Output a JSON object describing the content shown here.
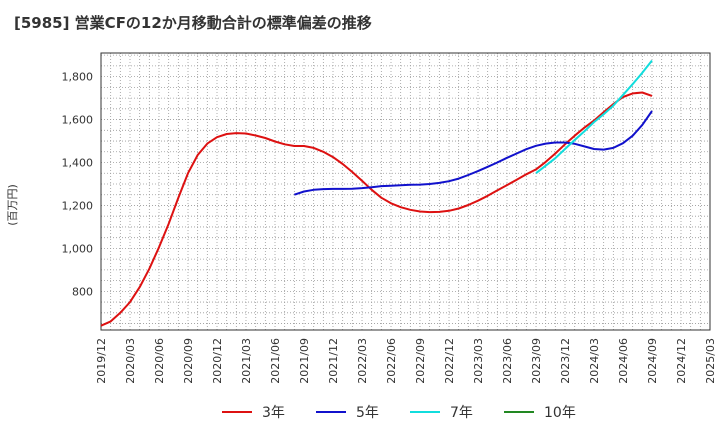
{
  "title": "[5985]  営業CFの12か月移動合計の標準偏差の推移",
  "colors": {
    "grid": "#999999",
    "axis": "#333333",
    "background": "#ffffff"
  },
  "chart_data": {
    "type": "line",
    "title": "[5985]  営業CFの12か月移動合計の標準偏差の推移",
    "xlabel": "",
    "ylabel": "(百万円)",
    "x_tick_labels": [
      "2019/12",
      "2020/03",
      "2020/06",
      "2020/09",
      "2020/12",
      "2021/03",
      "2021/06",
      "2021/09",
      "2021/12",
      "2022/03",
      "2022/06",
      "2022/09",
      "2022/12",
      "2023/03",
      "2023/06",
      "2023/09",
      "2023/12",
      "2024/03",
      "2024/06",
      "2024/09",
      "2024/12",
      "2025/03"
    ],
    "y_ticks": [
      800,
      1000,
      1200,
      1400,
      1600,
      1800
    ],
    "y_tick_labels": [
      "800",
      "1,000",
      "1,200",
      "1,400",
      "1,600",
      "1,800"
    ],
    "ylim": [
      620,
      1910
    ],
    "xlim": [
      "2019/12",
      "2025/03"
    ],
    "grid": true,
    "legend_position": "bottom",
    "series": [
      {
        "name": "3年",
        "color": "#dd1111",
        "points": [
          [
            "2019/12",
            640
          ],
          [
            "2020/01",
            660
          ],
          [
            "2020/02",
            700
          ],
          [
            "2020/03",
            750
          ],
          [
            "2020/04",
            820
          ],
          [
            "2020/05",
            905
          ],
          [
            "2020/06",
            1005
          ],
          [
            "2020/07",
            1115
          ],
          [
            "2020/08",
            1235
          ],
          [
            "2020/09",
            1350
          ],
          [
            "2020/10",
            1435
          ],
          [
            "2020/11",
            1488
          ],
          [
            "2020/12",
            1518
          ],
          [
            "2021/01",
            1533
          ],
          [
            "2021/02",
            1537
          ],
          [
            "2021/03",
            1535
          ],
          [
            "2021/04",
            1526
          ],
          [
            "2021/05",
            1514
          ],
          [
            "2021/06",
            1498
          ],
          [
            "2021/07",
            1485
          ],
          [
            "2021/08",
            1477
          ],
          [
            "2021/09",
            1477
          ],
          [
            "2021/10",
            1468
          ],
          [
            "2021/11",
            1450
          ],
          [
            "2021/12",
            1425
          ],
          [
            "2022/01",
            1393
          ],
          [
            "2022/02",
            1356
          ],
          [
            "2022/03",
            1315
          ],
          [
            "2022/04",
            1273
          ],
          [
            "2022/05",
            1236
          ],
          [
            "2022/06",
            1210
          ],
          [
            "2022/07",
            1192
          ],
          [
            "2022/08",
            1180
          ],
          [
            "2022/09",
            1172
          ],
          [
            "2022/10",
            1169
          ],
          [
            "2022/11",
            1170
          ],
          [
            "2022/12",
            1175
          ],
          [
            "2023/01",
            1186
          ],
          [
            "2023/02",
            1202
          ],
          [
            "2023/03",
            1222
          ],
          [
            "2023/04",
            1245
          ],
          [
            "2023/05",
            1270
          ],
          [
            "2023/06",
            1295
          ],
          [
            "2023/07",
            1320
          ],
          [
            "2023/08",
            1345
          ],
          [
            "2023/09",
            1368
          ],
          [
            "2023/10",
            1403
          ],
          [
            "2023/11",
            1442
          ],
          [
            "2023/12",
            1485
          ],
          [
            "2024/01",
            1525
          ],
          [
            "2024/02",
            1562
          ],
          [
            "2024/03",
            1595
          ],
          [
            "2024/04",
            1635
          ],
          [
            "2024/05",
            1672
          ],
          [
            "2024/06",
            1705
          ],
          [
            "2024/07",
            1722
          ],
          [
            "2024/08",
            1726
          ],
          [
            "2024/09",
            1710
          ]
        ]
      },
      {
        "name": "5年",
        "color": "#1111cc",
        "points": [
          [
            "2021/08",
            1250
          ],
          [
            "2021/09",
            1265
          ],
          [
            "2021/10",
            1273
          ],
          [
            "2021/11",
            1276
          ],
          [
            "2021/12",
            1277
          ],
          [
            "2022/01",
            1277
          ],
          [
            "2022/02",
            1278
          ],
          [
            "2022/03",
            1281
          ],
          [
            "2022/04",
            1285
          ],
          [
            "2022/05",
            1290
          ],
          [
            "2022/06",
            1292
          ],
          [
            "2022/07",
            1294
          ],
          [
            "2022/08",
            1296
          ],
          [
            "2022/09",
            1297
          ],
          [
            "2022/10",
            1300
          ],
          [
            "2022/11",
            1305
          ],
          [
            "2022/12",
            1313
          ],
          [
            "2023/01",
            1325
          ],
          [
            "2023/02",
            1342
          ],
          [
            "2023/03",
            1360
          ],
          [
            "2023/04",
            1380
          ],
          [
            "2023/05",
            1400
          ],
          [
            "2023/06",
            1422
          ],
          [
            "2023/07",
            1442
          ],
          [
            "2023/08",
            1462
          ],
          [
            "2023/09",
            1478
          ],
          [
            "2023/10",
            1488
          ],
          [
            "2023/11",
            1493
          ],
          [
            "2023/12",
            1493
          ],
          [
            "2024/01",
            1487
          ],
          [
            "2024/02",
            1475
          ],
          [
            "2024/03",
            1463
          ],
          [
            "2024/04",
            1460
          ],
          [
            "2024/05",
            1468
          ],
          [
            "2024/06",
            1490
          ],
          [
            "2024/07",
            1525
          ],
          [
            "2024/08",
            1575
          ],
          [
            "2024/09",
            1640
          ]
        ]
      },
      {
        "name": "7年",
        "color": "#11dddd",
        "points": [
          [
            "2023/09",
            1350
          ],
          [
            "2023/10",
            1385
          ],
          [
            "2023/11",
            1420
          ],
          [
            "2023/12",
            1463
          ],
          [
            "2024/01",
            1505
          ],
          [
            "2024/02",
            1545
          ],
          [
            "2024/03",
            1588
          ],
          [
            "2024/04",
            1625
          ],
          [
            "2024/05",
            1665
          ],
          [
            "2024/06",
            1715
          ],
          [
            "2024/07",
            1765
          ],
          [
            "2024/08",
            1818
          ],
          [
            "2024/09",
            1875
          ]
        ]
      },
      {
        "name": "10年",
        "color": "#228822",
        "points": []
      }
    ]
  }
}
